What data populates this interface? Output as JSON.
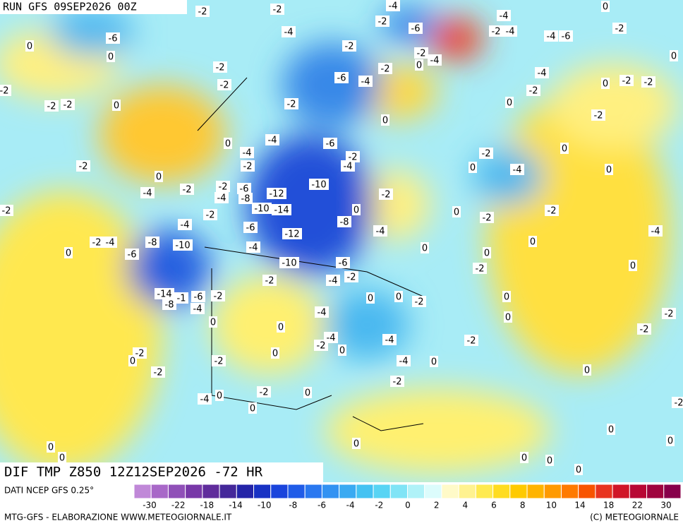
{
  "header": {
    "title": "RUN GFS 09SEP2026 00Z"
  },
  "map": {
    "title": "DIF TMP Z850 12Z12SEP2026 -72 HR",
    "contour_labels": [
      -2,
      -2,
      -4,
      -4,
      0,
      -6,
      0,
      0,
      -4,
      -2,
      -6,
      -2,
      -4,
      -4,
      -6,
      -2,
      0,
      -2,
      -2,
      -4,
      0,
      -2,
      -2,
      -2,
      -6,
      -4,
      -4,
      0,
      -2,
      -2,
      -2,
      -2,
      -2,
      -2,
      0,
      -2,
      0,
      -2,
      0,
      0,
      -4,
      -6,
      -2,
      -4,
      -4,
      -2,
      -2,
      0,
      -4,
      0,
      0,
      -2,
      0,
      -4,
      -2,
      -2,
      -4,
      -6,
      -8,
      -12,
      -10,
      -2,
      -10,
      -14,
      -2,
      -2,
      0,
      0,
      -2,
      -2,
      -4,
      -4,
      -6,
      -12,
      -8,
      -4,
      -2,
      -4,
      -8,
      -10,
      -4,
      0,
      0,
      0,
      -6,
      0,
      -10,
      -6,
      -2,
      0,
      -2,
      -4,
      -2,
      -14,
      -1,
      -6,
      -2,
      -8,
      -4,
      0,
      0,
      -2,
      0,
      -4,
      0,
      0,
      0,
      -2,
      -2,
      -4,
      -2,
      0,
      -4,
      -2,
      -2,
      0,
      0,
      -2,
      -4,
      0,
      -2,
      0,
      -2,
      -2,
      0,
      0,
      -4,
      0,
      -2,
      0,
      0,
      0,
      0,
      0,
      0,
      0,
      0
    ]
  },
  "colorbar": {
    "source": "DATI NCEP GFS 0.25°",
    "colors": [
      "#c088d8",
      "#a868c8",
      "#9050b8",
      "#7838a8",
      "#602c9c",
      "#44289a",
      "#2424a8",
      "#1832c4",
      "#1a44dc",
      "#205ce8",
      "#2a78f0",
      "#3292f2",
      "#3aaaf2",
      "#44c2f2",
      "#58d4f4",
      "#80e4f6",
      "#b0f2f8",
      "#dcfcfc",
      "#fffac8",
      "#fff290",
      "#ffea50",
      "#ffdc20",
      "#ffca00",
      "#ffb400",
      "#ff9a00",
      "#ff7a00",
      "#f85400",
      "#e83420",
      "#d01628",
      "#b80834",
      "#a0043e",
      "#88004a"
    ],
    "ticks": [
      -30,
      -22,
      -18,
      -14,
      -10,
      -8,
      -6,
      -4,
      -2,
      0,
      2,
      4,
      6,
      8,
      10,
      14,
      18,
      22,
      30
    ]
  },
  "footer": {
    "credit": "MTG-GFS - ELABORAZIONE WWW.METEOGIORNALE.IT",
    "copyright": "(C) METEOGIORNALE"
  }
}
